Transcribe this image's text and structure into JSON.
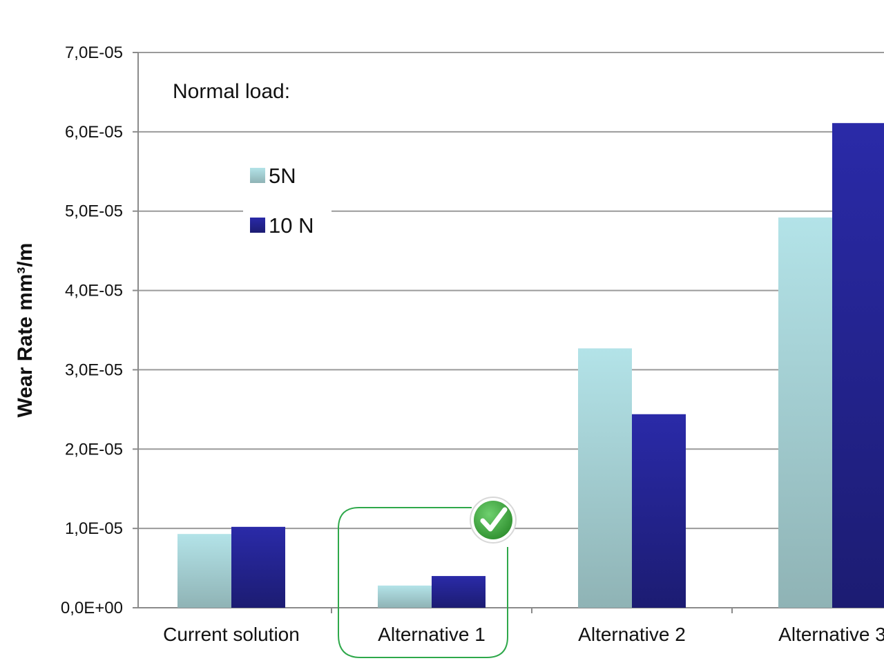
{
  "chart_data": {
    "type": "bar",
    "title": "",
    "xlabel": "",
    "ylabel": "Wear Rate mm³/m",
    "categories": [
      "Current solution",
      "Alternative 1",
      "Alternative 2",
      "Alternative 3"
    ],
    "series": [
      {
        "name": "5N",
        "values": [
          9.3e-06,
          2.8e-06,
          3.27e-05,
          4.92e-05
        ]
      },
      {
        "name": "10 N",
        "values": [
          1.02e-05,
          4e-06,
          2.44e-05,
          6.11e-05
        ]
      }
    ],
    "ylim": [
      0,
      7e-05
    ],
    "yticks": [
      0,
      1e-05,
      2e-05,
      3e-05,
      4e-05,
      5e-05,
      6e-05,
      7e-05
    ],
    "ytick_labels": [
      "0,0E+00",
      "1,0E-05",
      "2,0E-05",
      "3,0E-05",
      "4,0E-05",
      "5,0E-05",
      "6,0E-05",
      "7,0E-05"
    ],
    "grid": true,
    "legend": {
      "title": "Normal load:",
      "placement": "top-left"
    },
    "highlight": {
      "category": "Alternative 1",
      "marker": "check-badge"
    },
    "colors": {
      "series_5n_top": "#b3e3e8",
      "series_5n_bottom": "#8fb3b5",
      "series_10n_top": "#2a2aa8",
      "series_10n_bottom": "#1c1c72",
      "grid": "#9a9a9a",
      "highlight_box": "#2ea84a",
      "badge_green": "#3aa33a"
    }
  }
}
